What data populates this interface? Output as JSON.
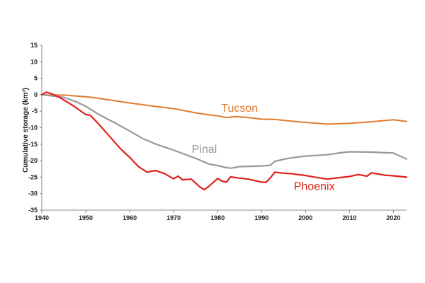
{
  "chart_data": {
    "type": "line",
    "title": "",
    "xlabel": "",
    "ylabel": "Cumulative storage (km³)",
    "xlim": [
      1940,
      2023
    ],
    "ylim": [
      -35,
      15
    ],
    "xticks": [
      1940,
      1950,
      1960,
      1970,
      1980,
      1990,
      2000,
      2010,
      2020
    ],
    "yticks": [
      15,
      10,
      5,
      0,
      -5,
      -10,
      -15,
      -20,
      -25,
      -30,
      -35
    ],
    "grid": false,
    "legend": "none",
    "series": [
      {
        "name": "Tucson",
        "color": "#e07b2e",
        "x": [
          1940,
          1942,
          1945,
          1950,
          1952,
          1955,
          1960,
          1965,
          1970,
          1975,
          1978,
          1980,
          1982,
          1984,
          1987,
          1990,
          1993,
          1996,
          2000,
          2005,
          2010,
          2015,
          2020,
          2023
        ],
        "y": [
          0,
          -0.1,
          -0.1,
          -0.6,
          -0.9,
          -1.5,
          -2.5,
          -3.4,
          -4.2,
          -5.5,
          -6.1,
          -6.4,
          -6.9,
          -6.6,
          -6.9,
          -7.4,
          -7.5,
          -7.9,
          -8.4,
          -8.9,
          -8.7,
          -8.2,
          -7.6,
          -8.1
        ]
      },
      {
        "name": "Pinal",
        "color": "#999999",
        "x": [
          1940,
          1942,
          1945,
          1948,
          1950,
          1953,
          1957,
          1960,
          1963,
          1966,
          1970,
          1975,
          1978,
          1980,
          1982,
          1983,
          1985,
          1988,
          1990,
          1992,
          1993,
          1996,
          2000,
          2005,
          2008,
          2010,
          2015,
          2020,
          2023
        ],
        "y": [
          0,
          -0.3,
          -0.8,
          -2.2,
          -3.5,
          -6.0,
          -8.8,
          -11.0,
          -13.3,
          -15.0,
          -16.8,
          -19.3,
          -21.0,
          -21.5,
          -22.1,
          -22.3,
          -21.8,
          -21.7,
          -21.6,
          -21.4,
          -20.2,
          -19.3,
          -18.6,
          -18.2,
          -17.6,
          -17.3,
          -17.4,
          -17.7,
          -19.5
        ]
      },
      {
        "name": "Phoenix",
        "color": "#e0211b",
        "x": [
          1940,
          1941,
          1942,
          1944,
          1947,
          1950,
          1951,
          1953,
          1955,
          1958,
          1960,
          1962,
          1964,
          1965,
          1966,
          1968,
          1970,
          1971,
          1972,
          1974,
          1976,
          1977,
          1978,
          1980,
          1981,
          1982,
          1983,
          1985,
          1987,
          1990,
          1991,
          1992,
          1993,
          1995,
          1997,
          2000,
          2003,
          2005,
          2008,
          2010,
          2012,
          2014,
          2015,
          2018,
          2020,
          2023
        ],
        "y": [
          0,
          0.8,
          0.4,
          -0.8,
          -3.2,
          -6.0,
          -6.2,
          -9.0,
          -12.0,
          -16.5,
          -19.0,
          -21.8,
          -23.5,
          -23.2,
          -23.0,
          -24.0,
          -25.5,
          -24.7,
          -25.8,
          -25.6,
          -28.0,
          -28.8,
          -27.8,
          -25.4,
          -26.2,
          -26.5,
          -24.9,
          -25.3,
          -25.6,
          -26.5,
          -26.6,
          -25.2,
          -23.5,
          -23.8,
          -24.0,
          -24.5,
          -25.2,
          -25.6,
          -25.1,
          -24.8,
          -24.2,
          -24.7,
          -23.7,
          -24.4,
          -24.6,
          -25.0
        ]
      }
    ]
  }
}
